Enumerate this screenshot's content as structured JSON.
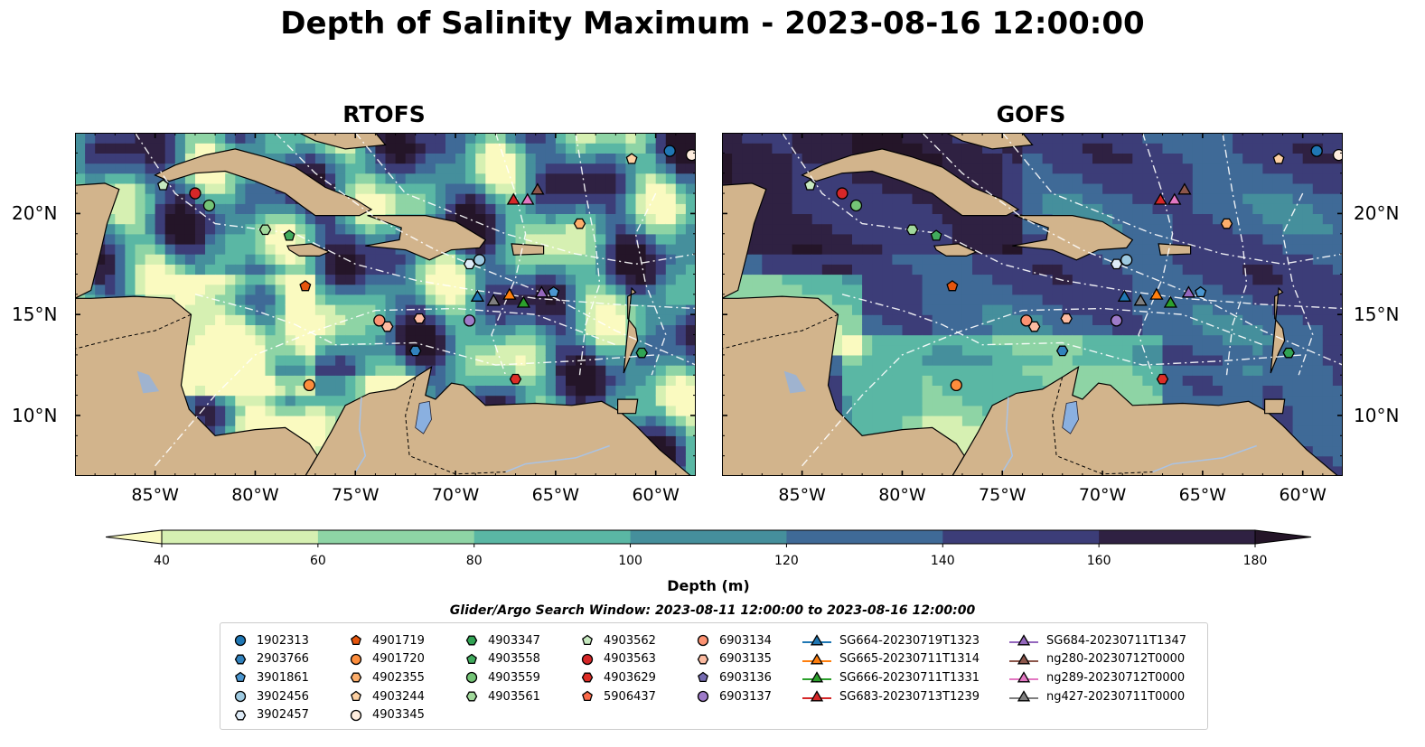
{
  "title": "Depth of Salinity Maximum - 2023-08-16 12:00:00",
  "panels": [
    {
      "id": "rtofs",
      "title": "RTOFS"
    },
    {
      "id": "gofs",
      "title": "GOFS"
    }
  ],
  "map_extent": {
    "lon": [
      -89,
      -58
    ],
    "lat": [
      7,
      24
    ]
  },
  "lon_ticks": [
    "85°W",
    "80°W",
    "75°W",
    "70°W",
    "65°W",
    "60°W"
  ],
  "lat_ticks": [
    "20°N",
    "15°N",
    "10°N"
  ],
  "colors": {
    "land": "#d2b48c",
    "water_bodies": "#8ab0e0",
    "rivers": "#aac3e4",
    "depth_bins": [
      "#fafac0",
      "#d6f0b2",
      "#8ed4a5",
      "#5ab7a4",
      "#458f9c",
      "#3f6a97",
      "#3c3d78",
      "#2f2142",
      "#241528"
    ]
  },
  "colorbar": {
    "label": "Depth (m)",
    "ticks": [
      "40",
      "60",
      "80",
      "100",
      "120",
      "140",
      "160",
      "180"
    ],
    "extend": "both"
  },
  "search_window": "Glider/Argo Search Window: 2023-08-11 12:00:00 to 2023-08-16 12:00:00",
  "legend": {
    "columns": [
      [
        {
          "label": "1902313",
          "marker": "circle",
          "color": "#1f77b4"
        },
        {
          "label": "2903766",
          "marker": "hexagon",
          "color": "#3182bd"
        },
        {
          "label": "3901861",
          "marker": "pentagon",
          "color": "#4a96d0"
        },
        {
          "label": "3902456",
          "marker": "circle",
          "color": "#9ecae1"
        },
        {
          "label": "3902457",
          "marker": "hexagon",
          "color": "#deebf7"
        }
      ],
      [
        {
          "label": "4901719",
          "marker": "pentagon",
          "color": "#e6550d"
        },
        {
          "label": "4901720",
          "marker": "circle",
          "color": "#fd8d3c"
        },
        {
          "label": "4902355",
          "marker": "hexagon",
          "color": "#fdae6b"
        },
        {
          "label": "4903244",
          "marker": "pentagon",
          "color": "#fdd0a2"
        },
        {
          "label": "4903345",
          "marker": "circle",
          "color": "#feedde"
        }
      ],
      [
        {
          "label": "4903347",
          "marker": "hexagon",
          "color": "#31a354"
        },
        {
          "label": "4903558",
          "marker": "pentagon",
          "color": "#41ab5d"
        },
        {
          "label": "4903559",
          "marker": "circle",
          "color": "#74c476"
        },
        {
          "label": "4903561",
          "marker": "hexagon",
          "color": "#a1d99b"
        }
      ],
      [
        {
          "label": "4903562",
          "marker": "pentagon",
          "color": "#c7e9c0"
        },
        {
          "label": "4903563",
          "marker": "circle",
          "color": "#d62728"
        },
        {
          "label": "4903629",
          "marker": "hexagon",
          "color": "#de2d26"
        },
        {
          "label": "5906437",
          "marker": "pentagon",
          "color": "#fb6a4a"
        }
      ],
      [
        {
          "label": "6903134",
          "marker": "circle",
          "color": "#fc9272"
        },
        {
          "label": "6903135",
          "marker": "hexagon",
          "color": "#fcbba1"
        },
        {
          "label": "6903136",
          "marker": "pentagon",
          "color": "#756bb1"
        },
        {
          "label": "6903137",
          "marker": "circle",
          "color": "#9e7bc9"
        }
      ],
      [
        {
          "label": "SG664-20230719T1323",
          "marker": "triangle",
          "color": "#1f77b4",
          "line": true
        },
        {
          "label": "SG665-20230711T1314",
          "marker": "triangle",
          "color": "#ff7f0e",
          "line": true
        },
        {
          "label": "SG666-20230711T1331",
          "marker": "triangle",
          "color": "#2ca02c",
          "line": true
        },
        {
          "label": "SG683-20230713T1239",
          "marker": "triangle",
          "color": "#d62728",
          "line": true
        }
      ],
      [
        {
          "label": "SG684-20230711T1347",
          "marker": "triangle",
          "color": "#9467bd",
          "line": true
        },
        {
          "label": "ng280-20230712T0000",
          "marker": "triangle",
          "color": "#8c564b",
          "line": true
        },
        {
          "label": "ng289-20230712T0000",
          "marker": "triangle",
          "color": "#e377c2",
          "line": true
        },
        {
          "label": "ng427-20230711T0000",
          "marker": "triangle",
          "color": "#7f7f7f",
          "line": true
        }
      ]
    ]
  },
  "observations": [
    {
      "id": "1902313",
      "lon": -59.3,
      "lat": 23.1
    },
    {
      "id": "4903345",
      "lon": -58.2,
      "lat": 22.9
    },
    {
      "id": "4903244",
      "lon": -61.2,
      "lat": 22.7
    },
    {
      "id": "4903562",
      "lon": -84.6,
      "lat": 21.4
    },
    {
      "id": "4903563",
      "lon": -83.0,
      "lat": 21.0
    },
    {
      "id": "4903559",
      "lon": -82.3,
      "lat": 20.4
    },
    {
      "id": "4903561",
      "lon": -79.5,
      "lat": 19.2
    },
    {
      "id": "4903558",
      "lon": -78.3,
      "lat": 18.9
    },
    {
      "id": "4902355",
      "lon": -63.8,
      "lat": 19.5
    },
    {
      "id": "3902456",
      "lon": -68.8,
      "lat": 17.7
    },
    {
      "id": "3902457",
      "lon": -69.3,
      "lat": 17.5
    },
    {
      "id": "4901719",
      "lon": -77.5,
      "lat": 16.4
    },
    {
      "id": "6903134",
      "lon": -73.8,
      "lat": 14.7
    },
    {
      "id": "6903135",
      "lon": -73.4,
      "lat": 14.4
    },
    {
      "id": "6903135",
      "lon": -71.8,
      "lat": 14.8
    },
    {
      "id": "6903137",
      "lon": -69.3,
      "lat": 14.7
    },
    {
      "id": "2903766",
      "lon": -72.0,
      "lat": 13.2
    },
    {
      "id": "4903347",
      "lon": -60.7,
      "lat": 13.1
    },
    {
      "id": "4903629",
      "lon": -67.0,
      "lat": 11.8
    },
    {
      "id": "4901720",
      "lon": -77.3,
      "lat": 11.5
    },
    {
      "id": "3901861",
      "lon": -65.1,
      "lat": 16.1
    },
    {
      "id": "SG664-20230719T1323",
      "lon": -68.9,
      "lat": 15.9
    },
    {
      "id": "SG665-20230711T1314",
      "lon": -67.3,
      "lat": 16.0
    },
    {
      "id": "SG666-20230711T1331",
      "lon": -66.6,
      "lat": 15.6
    },
    {
      "id": "SG683-20230713T1239",
      "lon": -67.1,
      "lat": 20.7
    },
    {
      "id": "SG684-20230711T1347",
      "lon": -65.7,
      "lat": 16.1
    },
    {
      "id": "ng280-20230712T0000",
      "lon": -65.9,
      "lat": 21.2
    },
    {
      "id": "ng289-20230712T0000",
      "lon": -66.4,
      "lat": 20.7
    },
    {
      "id": "ng427-20230711T0000",
      "lon": -68.1,
      "lat": 15.7
    }
  ]
}
